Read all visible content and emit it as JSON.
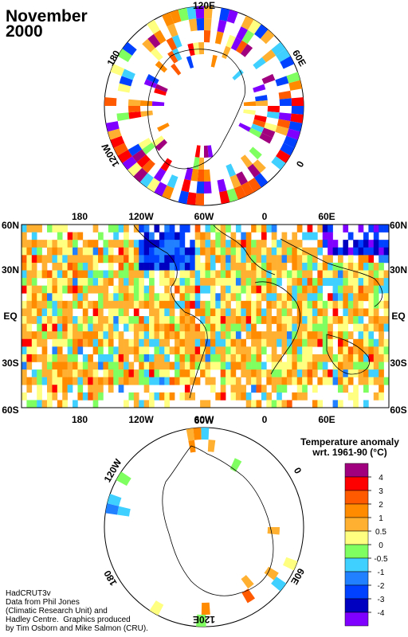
{
  "title_line1": "November",
  "title_line2": "2000",
  "credits": [
    "HadCRUT3v",
    "Data from Phil Jones",
    "(Climatic Research Unit) and",
    "Hadley Centre.  Graphics produced",
    "by Tim Osborn and Mike Salmon (CRU)."
  ],
  "legend": {
    "title_line1": "Temperature anomaly",
    "title_line2": "wrt. 1961-90  (°C)",
    "colors": [
      "#a0007e",
      "#ff0000",
      "#ff5a00",
      "#ff8c00",
      "#ffb030",
      "#ffff80",
      "#80ff60",
      "#40d0ff",
      "#2080ff",
      "#0040ff",
      "#0000c0",
      "#8000ff"
    ],
    "ticks": [
      "4",
      "3",
      "2",
      "1",
      "0.5",
      "0",
      "-0.5",
      "-1",
      "-2",
      "-3",
      "-4"
    ]
  },
  "north_polar": {
    "labels": {
      "top": "120E",
      "left": "180",
      "right": "60E",
      "lower_left": "120W",
      "lower_right": "0"
    }
  },
  "main_map": {
    "lon_labels": [
      "180",
      "120W",
      "60W",
      "0",
      "60E"
    ],
    "lat_labels": [
      "60N",
      "30N",
      "EQ",
      "30S",
      "60S"
    ]
  },
  "south_polar": {
    "labels": {
      "top": "60W",
      "upper_left": "120W",
      "right": "0",
      "left": "180",
      "lower_right": "60E",
      "bottom": "120E"
    }
  }
}
